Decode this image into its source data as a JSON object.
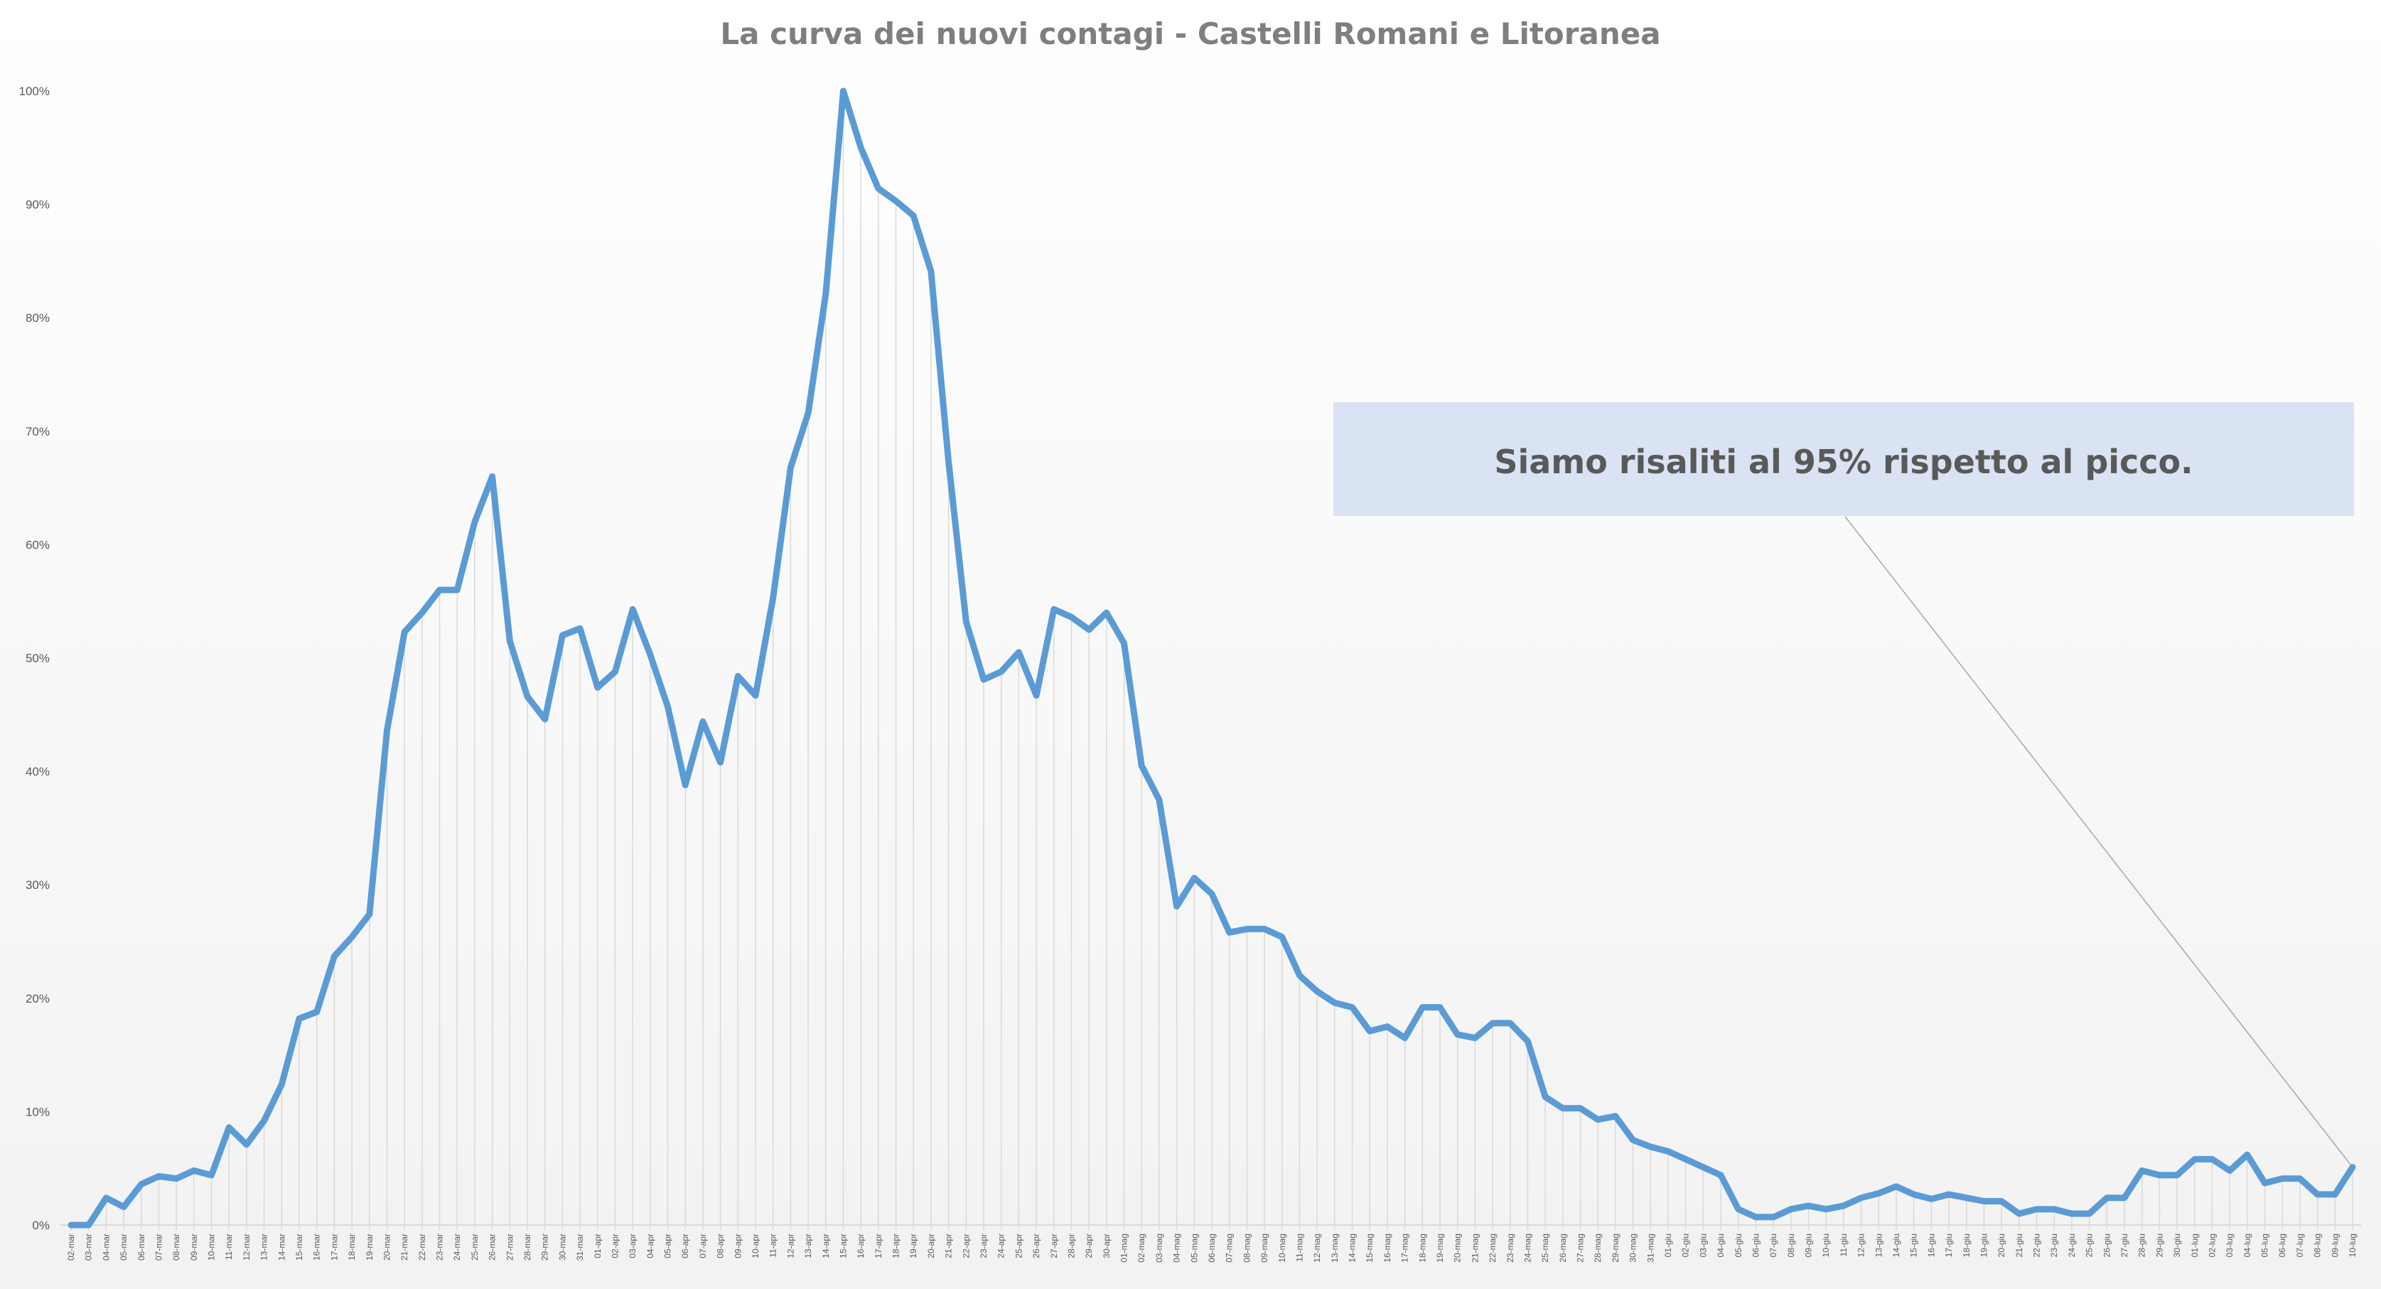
{
  "chart_data": {
    "type": "line",
    "title": "La curva dei nuovi contagi - Castelli Romani e Litoranea",
    "xlabel": "",
    "ylabel": "",
    "ylim": [
      0,
      100
    ],
    "y_ticks": [
      "0%",
      "10%",
      "20%",
      "30%",
      "40%",
      "50%",
      "60%",
      "70%",
      "80%",
      "90%",
      "100%"
    ],
    "grid": "vertical drop lines",
    "legend": "none",
    "colors": {
      "line": "#5b9bd5",
      "dropline": "#d9d9d9",
      "annotation_bg": "#dae3f3"
    },
    "annotation": "Siamo risaliti al 95% rispetto al picco.",
    "x": [
      "02-mar",
      "03-mar",
      "04-mar",
      "05-mar",
      "06-mar",
      "07-mar",
      "08-mar",
      "09-mar",
      "10-mar",
      "11-mar",
      "12-mar",
      "13-mar",
      "14-mar",
      "15-mar",
      "16-mar",
      "17-mar",
      "18-mar",
      "19-mar",
      "20-mar",
      "21-mar",
      "22-mar",
      "23-mar",
      "24-mar",
      "25-mar",
      "26-mar",
      "27-mar",
      "28-mar",
      "29-mar",
      "30-mar",
      "31-mar",
      "01-apr",
      "02-apr",
      "03-apr",
      "04-apr",
      "05-apr",
      "06-apr",
      "07-apr",
      "08-apr",
      "09-apr",
      "10-apr",
      "11-apr",
      "12-apr",
      "13-apr",
      "14-apr",
      "15-apr",
      "16-apr",
      "17-apr",
      "18-apr",
      "19-apr",
      "20-apr",
      "21-apr",
      "22-apr",
      "23-apr",
      "24-apr",
      "25-apr",
      "26-apr",
      "27-apr",
      "28-apr",
      "29-apr",
      "30-apr",
      "01-mag",
      "02-mag",
      "03-mag",
      "04-mag",
      "05-mag",
      "06-mag",
      "07-mag",
      "08-mag",
      "09-mag",
      "10-mag",
      "11-mag",
      "12-mag",
      "13-mag",
      "14-mag",
      "15-mag",
      "16-mag",
      "17-mag",
      "18-mag",
      "19-mag",
      "20-mag",
      "21-mag",
      "22-mag",
      "23-mag",
      "24-mag",
      "25-mag",
      "26-mag",
      "27-mag",
      "28-mag",
      "29-mag",
      "30-mag",
      "31-mag",
      "01-giu",
      "02-giu",
      "03-giu",
      "04-giu",
      "05-giu",
      "06-giu",
      "07-giu",
      "08-giu",
      "09-giu",
      "10-giu",
      "11-giu",
      "12-giu",
      "13-giu",
      "14-giu",
      "15-giu",
      "16-giu",
      "17-giu",
      "18-giu",
      "19-giu",
      "20-giu",
      "21-giu",
      "22-giu",
      "23-giu",
      "24-giu",
      "25-giu",
      "26-giu",
      "27-giu",
      "28-giu",
      "29-giu",
      "30-giu",
      "01-lug",
      "02-lug",
      "03-lug",
      "04-lug",
      "05-lug",
      "06-lug",
      "07-lug",
      "08-lug",
      "09-lug",
      "10-lug"
    ],
    "values": [
      0,
      0,
      2.4,
      1.6,
      3.6,
      4.3,
      4.1,
      4.8,
      4.4,
      8.6,
      7.1,
      9.2,
      12.4,
      18.2,
      18.8,
      23.7,
      25.4,
      27.4,
      43.6,
      52.3,
      54,
      56,
      56,
      62,
      66,
      51.5,
      46.6,
      44.6,
      52,
      52.6,
      47.4,
      48.8,
      54.3,
      50.3,
      45.7,
      38.8,
      44.4,
      40.8,
      48.4,
      46.7,
      55.3,
      66.8,
      71.6,
      82.1,
      100,
      95,
      91.4,
      90.3,
      89,
      84.1,
      67.3,
      53.2,
      48.1,
      48.8,
      50.5,
      46.7,
      54.3,
      53.6,
      52.5,
      54,
      51.3,
      40.5,
      37.5,
      28.1,
      30.6,
      29.2,
      25.8,
      26.1,
      26.1,
      25.4,
      22,
      20.6,
      19.6,
      19.2,
      17.1,
      17.5,
      16.5,
      19.2,
      19.2,
      16.8,
      16.5,
      17.8,
      17.8,
      16.2,
      11.3,
      10.3,
      10.3,
      9.3,
      9.6,
      7.5,
      6.9,
      6.5,
      5.8,
      5.1,
      4.4,
      1.4,
      0.7,
      0.7,
      1.4,
      1.7,
      1.4,
      1.7,
      2.4,
      2.8,
      3.4,
      2.7,
      2.3,
      2.7,
      2.4,
      2.1,
      2.1,
      1,
      1.4,
      1.4,
      1,
      1,
      2.4,
      2.4,
      4.8,
      4.4,
      4.4,
      5.8,
      5.8,
      4.8,
      6.2,
      3.7,
      4.1,
      4.1,
      2.7,
      2.7,
      5.1
    ]
  }
}
